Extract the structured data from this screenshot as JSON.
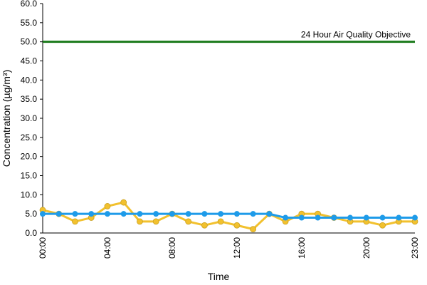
{
  "chart_data": {
    "type": "line",
    "y_label": "Concentration (µg/m³)",
    "x_label": "Time",
    "categories": [
      "00:00",
      null,
      null,
      null,
      "04:00",
      null,
      null,
      null,
      "08:00",
      null,
      null,
      null,
      "12:00",
      null,
      null,
      null,
      "16:00",
      null,
      null,
      null,
      "20:00",
      null,
      null,
      "23:00"
    ],
    "series": [
      {
        "color": "#f2c12e",
        "values": [
          6,
          5,
          3,
          4,
          7,
          8,
          3,
          3,
          5,
          3,
          2,
          3,
          2,
          1,
          5,
          3,
          5,
          5,
          4,
          3,
          3,
          2,
          3,
          3
        ]
      },
      {
        "color": "#1e9be9",
        "values": [
          5,
          5,
          5,
          5,
          5,
          5,
          5,
          5,
          5,
          5,
          5,
          5,
          5,
          5,
          5,
          4,
          4,
          4,
          4,
          4,
          4,
          4,
          4,
          4
        ]
      }
    ],
    "reference_line": {
      "value": 50,
      "label": "24 Hour Air Quality Objective",
      "color": "#1a7a1a"
    },
    "ylim": [
      0,
      60
    ],
    "yticks": [
      {
        "value": 0,
        "label": "0.0"
      },
      {
        "value": 5,
        "label": "5.0"
      },
      {
        "value": 10,
        "label": "10.0"
      },
      {
        "value": 15,
        "label": "15.0"
      },
      {
        "value": 20,
        "label": "20.0"
      },
      {
        "value": 25,
        "label": "25.0"
      },
      {
        "value": 30,
        "label": "30.0"
      },
      {
        "value": 35,
        "label": "35.0"
      },
      {
        "value": 40,
        "label": "40.0"
      },
      {
        "value": 45,
        "label": "45.0"
      },
      {
        "value": 50,
        "label": "50.0"
      },
      {
        "value": 55,
        "label": "55.0"
      },
      {
        "value": 60,
        "label": "60.0"
      }
    ]
  }
}
